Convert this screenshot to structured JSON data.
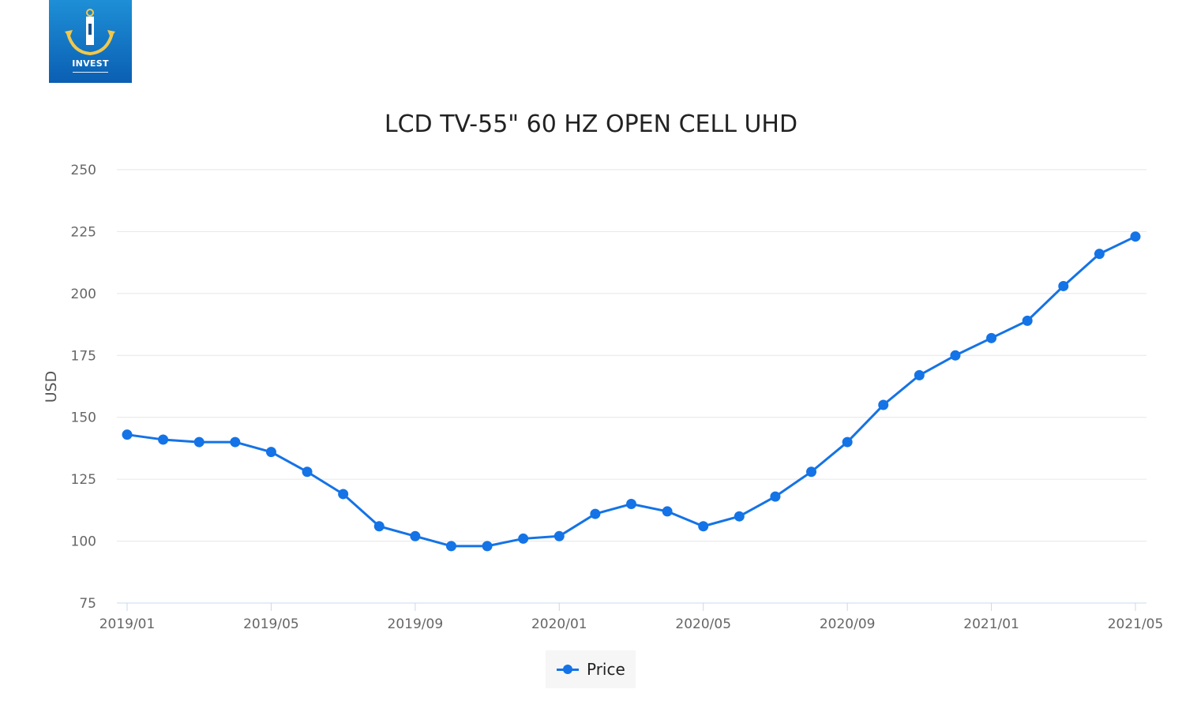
{
  "logo": {
    "text": "INVEST"
  },
  "chart_data": {
    "type": "line",
    "title": "LCD TV-55\" 60 HZ OPEN CELL UHD",
    "xlabel": "",
    "ylabel": "USD",
    "ylim": [
      75,
      250
    ],
    "yticks": [
      75,
      100,
      125,
      150,
      175,
      200,
      225,
      250
    ],
    "x": [
      "2019/01",
      "2019/02",
      "2019/03",
      "2019/04",
      "2019/05",
      "2019/06",
      "2019/07",
      "2019/08",
      "2019/09",
      "2019/10",
      "2019/11",
      "2019/12",
      "2020/01",
      "2020/02",
      "2020/03",
      "2020/04",
      "2020/05",
      "2020/06",
      "2020/07",
      "2020/08",
      "2020/09",
      "2020/10",
      "2020/11",
      "2020/12",
      "2021/01",
      "2021/02",
      "2021/03",
      "2021/04",
      "2021/05"
    ],
    "xtick_labels": [
      "2019/01",
      "2019/05",
      "2019/09",
      "2020/01",
      "2020/05",
      "2020/09",
      "2021/01",
      "2021/05"
    ],
    "series": [
      {
        "name": "Price",
        "values": [
          143,
          141,
          140,
          140,
          136,
          128,
          119,
          106,
          102,
          98,
          98,
          101,
          102,
          111,
          115,
          112,
          106,
          110,
          118,
          128,
          140,
          155,
          167,
          175,
          182,
          189,
          203,
          216,
          223
        ]
      }
    ],
    "grid": true,
    "legend": "bottom-center",
    "colors": {
      "line": "#1473e6",
      "grid": "#e6e6e6",
      "axis": "#c8d8ec",
      "tick_text": "#666666"
    }
  }
}
